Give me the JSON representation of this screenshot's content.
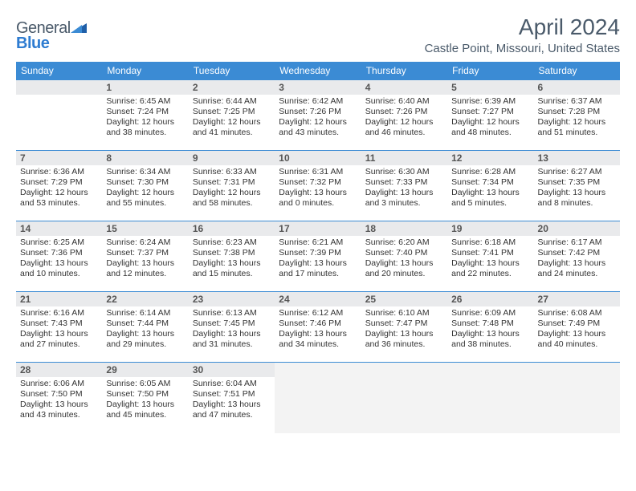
{
  "logo": {
    "line1": "General",
    "line2": "Blue"
  },
  "title": "April 2024",
  "location": "Castle Point, Missouri, United States",
  "weekdays": [
    "Sunday",
    "Monday",
    "Tuesday",
    "Wednesday",
    "Thursday",
    "Friday",
    "Saturday"
  ],
  "colors": {
    "header_bg": "#3b8bd4",
    "row_divider": "#3b8bd4",
    "daynum_bg": "#e9eaec",
    "title_color": "#4a5a6a",
    "logo_blue": "#2e7cd1",
    "trailing_bg": "#f3f3f3"
  },
  "typography": {
    "title_fontsize": 28,
    "location_fontsize": 15,
    "weekday_fontsize": 12,
    "daynum_fontsize": 12,
    "body_fontsize": 10.5
  },
  "weeks": [
    [
      {
        "n": "",
        "lines": []
      },
      {
        "n": "1",
        "lines": [
          "Sunrise: 6:45 AM",
          "Sunset: 7:24 PM",
          "Daylight: 12 hours and 38 minutes."
        ]
      },
      {
        "n": "2",
        "lines": [
          "Sunrise: 6:44 AM",
          "Sunset: 7:25 PM",
          "Daylight: 12 hours and 41 minutes."
        ]
      },
      {
        "n": "3",
        "lines": [
          "Sunrise: 6:42 AM",
          "Sunset: 7:26 PM",
          "Daylight: 12 hours and 43 minutes."
        ]
      },
      {
        "n": "4",
        "lines": [
          "Sunrise: 6:40 AM",
          "Sunset: 7:26 PM",
          "Daylight: 12 hours and 46 minutes."
        ]
      },
      {
        "n": "5",
        "lines": [
          "Sunrise: 6:39 AM",
          "Sunset: 7:27 PM",
          "Daylight: 12 hours and 48 minutes."
        ]
      },
      {
        "n": "6",
        "lines": [
          "Sunrise: 6:37 AM",
          "Sunset: 7:28 PM",
          "Daylight: 12 hours and 51 minutes."
        ]
      }
    ],
    [
      {
        "n": "7",
        "lines": [
          "Sunrise: 6:36 AM",
          "Sunset: 7:29 PM",
          "Daylight: 12 hours and 53 minutes."
        ]
      },
      {
        "n": "8",
        "lines": [
          "Sunrise: 6:34 AM",
          "Sunset: 7:30 PM",
          "Daylight: 12 hours and 55 minutes."
        ]
      },
      {
        "n": "9",
        "lines": [
          "Sunrise: 6:33 AM",
          "Sunset: 7:31 PM",
          "Daylight: 12 hours and 58 minutes."
        ]
      },
      {
        "n": "10",
        "lines": [
          "Sunrise: 6:31 AM",
          "Sunset: 7:32 PM",
          "Daylight: 13 hours and 0 minutes."
        ]
      },
      {
        "n": "11",
        "lines": [
          "Sunrise: 6:30 AM",
          "Sunset: 7:33 PM",
          "Daylight: 13 hours and 3 minutes."
        ]
      },
      {
        "n": "12",
        "lines": [
          "Sunrise: 6:28 AM",
          "Sunset: 7:34 PM",
          "Daylight: 13 hours and 5 minutes."
        ]
      },
      {
        "n": "13",
        "lines": [
          "Sunrise: 6:27 AM",
          "Sunset: 7:35 PM",
          "Daylight: 13 hours and 8 minutes."
        ]
      }
    ],
    [
      {
        "n": "14",
        "lines": [
          "Sunrise: 6:25 AM",
          "Sunset: 7:36 PM",
          "Daylight: 13 hours and 10 minutes."
        ]
      },
      {
        "n": "15",
        "lines": [
          "Sunrise: 6:24 AM",
          "Sunset: 7:37 PM",
          "Daylight: 13 hours and 12 minutes."
        ]
      },
      {
        "n": "16",
        "lines": [
          "Sunrise: 6:23 AM",
          "Sunset: 7:38 PM",
          "Daylight: 13 hours and 15 minutes."
        ]
      },
      {
        "n": "17",
        "lines": [
          "Sunrise: 6:21 AM",
          "Sunset: 7:39 PM",
          "Daylight: 13 hours and 17 minutes."
        ]
      },
      {
        "n": "18",
        "lines": [
          "Sunrise: 6:20 AM",
          "Sunset: 7:40 PM",
          "Daylight: 13 hours and 20 minutes."
        ]
      },
      {
        "n": "19",
        "lines": [
          "Sunrise: 6:18 AM",
          "Sunset: 7:41 PM",
          "Daylight: 13 hours and 22 minutes."
        ]
      },
      {
        "n": "20",
        "lines": [
          "Sunrise: 6:17 AM",
          "Sunset: 7:42 PM",
          "Daylight: 13 hours and 24 minutes."
        ]
      }
    ],
    [
      {
        "n": "21",
        "lines": [
          "Sunrise: 6:16 AM",
          "Sunset: 7:43 PM",
          "Daylight: 13 hours and 27 minutes."
        ]
      },
      {
        "n": "22",
        "lines": [
          "Sunrise: 6:14 AM",
          "Sunset: 7:44 PM",
          "Daylight: 13 hours and 29 minutes."
        ]
      },
      {
        "n": "23",
        "lines": [
          "Sunrise: 6:13 AM",
          "Sunset: 7:45 PM",
          "Daylight: 13 hours and 31 minutes."
        ]
      },
      {
        "n": "24",
        "lines": [
          "Sunrise: 6:12 AM",
          "Sunset: 7:46 PM",
          "Daylight: 13 hours and 34 minutes."
        ]
      },
      {
        "n": "25",
        "lines": [
          "Sunrise: 6:10 AM",
          "Sunset: 7:47 PM",
          "Daylight: 13 hours and 36 minutes."
        ]
      },
      {
        "n": "26",
        "lines": [
          "Sunrise: 6:09 AM",
          "Sunset: 7:48 PM",
          "Daylight: 13 hours and 38 minutes."
        ]
      },
      {
        "n": "27",
        "lines": [
          "Sunrise: 6:08 AM",
          "Sunset: 7:49 PM",
          "Daylight: 13 hours and 40 minutes."
        ]
      }
    ],
    [
      {
        "n": "28",
        "lines": [
          "Sunrise: 6:06 AM",
          "Sunset: 7:50 PM",
          "Daylight: 13 hours and 43 minutes."
        ]
      },
      {
        "n": "29",
        "lines": [
          "Sunrise: 6:05 AM",
          "Sunset: 7:50 PM",
          "Daylight: 13 hours and 45 minutes."
        ]
      },
      {
        "n": "30",
        "lines": [
          "Sunrise: 6:04 AM",
          "Sunset: 7:51 PM",
          "Daylight: 13 hours and 47 minutes."
        ]
      },
      {
        "n": "",
        "lines": [],
        "trailing": true
      },
      {
        "n": "",
        "lines": [],
        "trailing": true
      },
      {
        "n": "",
        "lines": [],
        "trailing": true
      },
      {
        "n": "",
        "lines": [],
        "trailing": true
      }
    ]
  ]
}
